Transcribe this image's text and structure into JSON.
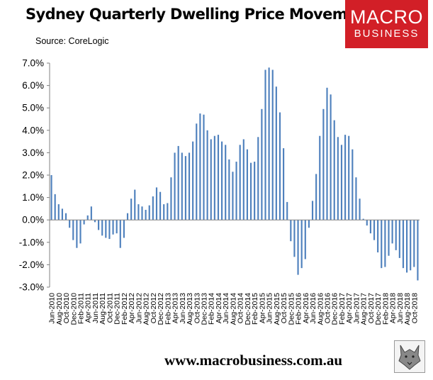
{
  "header": {
    "title": "Sydney Quarterly Dwelling Price Movements",
    "source": "Source: CoreLogic"
  },
  "logo": {
    "line1": "MACRO",
    "line2": "BUSINESS",
    "color": "#d21f27"
  },
  "footer": {
    "url": "www.macrobusiness.com.au",
    "icon": "wolf-logo-icon"
  },
  "chart_data": {
    "type": "bar",
    "title": "Sydney Quarterly Dwelling Price Movements",
    "xlabel": "",
    "ylabel": "",
    "ylim": [
      -3.0,
      7.0
    ],
    "yticks": [
      "7.0%",
      "6.0%",
      "5.0%",
      "4.0%",
      "3.0%",
      "2.0%",
      "1.0%",
      "0.0%",
      "-1.0%",
      "-2.0%",
      "-3.0%"
    ],
    "grid": false,
    "legend": "none",
    "bar_color": "#4f81bd",
    "categories": [
      "Jun-2010",
      "Jul-2010",
      "Aug-2010",
      "Sep-2010",
      "Oct-2010",
      "Nov-2010",
      "Dec-2010",
      "Jan-2011",
      "Feb-2011",
      "Mar-2011",
      "Apr-2011",
      "May-2011",
      "Jun-2011",
      "Jul-2011",
      "Aug-2011",
      "Sep-2011",
      "Oct-2011",
      "Nov-2011",
      "Dec-2011",
      "Jan-2012",
      "Feb-2012",
      "Mar-2012",
      "Apr-2012",
      "May-2012",
      "Jun-2012",
      "Jul-2012",
      "Aug-2012",
      "Sep-2012",
      "Oct-2012",
      "Nov-2012",
      "Dec-2012",
      "Jan-2013",
      "Feb-2013",
      "Mar-2013",
      "Apr-2013",
      "May-2013",
      "Jun-2013",
      "Jul-2013",
      "Aug-2013",
      "Sep-2013",
      "Oct-2013",
      "Nov-2013",
      "Dec-2013",
      "Jan-2014",
      "Feb-2014",
      "Mar-2014",
      "Apr-2014",
      "May-2014",
      "Jun-2014",
      "Jul-2014",
      "Aug-2014",
      "Sep-2014",
      "Oct-2014",
      "Nov-2014",
      "Dec-2014",
      "Jan-2015",
      "Feb-2015",
      "Mar-2015",
      "Apr-2015",
      "May-2015",
      "Jun-2015",
      "Jul-2015",
      "Aug-2015",
      "Sep-2015",
      "Oct-2015",
      "Nov-2015",
      "Dec-2015",
      "Jan-2016",
      "Feb-2016",
      "Mar-2016",
      "Apr-2016",
      "May-2016",
      "Jun-2016",
      "Jul-2016",
      "Aug-2016",
      "Sep-2016",
      "Oct-2016",
      "Nov-2016",
      "Dec-2016",
      "Jan-2017",
      "Feb-2017",
      "Mar-2017",
      "Apr-2017",
      "May-2017",
      "Jun-2017",
      "Jul-2017",
      "Aug-2017",
      "Sep-2017",
      "Oct-2017",
      "Nov-2017",
      "Dec-2017",
      "Jan-2018",
      "Feb-2018",
      "Mar-2018",
      "Apr-2018",
      "May-2018",
      "Jun-2018",
      "Jul-2018",
      "Aug-2018",
      "Sep-2018",
      "Oct-2018",
      "Nov-2018"
    ],
    "tick_labels": [
      "Jun-2010",
      "Aug-2010",
      "Oct-2010",
      "Dec-2010",
      "Feb-2011",
      "Apr-2011",
      "Jun-2011",
      "Aug-2011",
      "Oct-2011",
      "Dec-2011",
      "Feb-2012",
      "Apr-2012",
      "Jun-2012",
      "Aug-2012",
      "Oct-2012",
      "Dec-2012",
      "Feb-2013",
      "Apr-2013",
      "Jun-2013",
      "Aug-2013",
      "Oct-2013",
      "Dec-2013",
      "Feb-2014",
      "Apr-2014",
      "Jun-2014",
      "Aug-2014",
      "Oct-2014",
      "Dec-2014",
      "Feb-2015",
      "Apr-2015",
      "Jun-2015",
      "Aug-2015",
      "Oct-2015",
      "Dec-2015",
      "Feb-2016",
      "Apr-2016",
      "Jun-2016",
      "Aug-2016",
      "Oct-2016",
      "Dec-2016",
      "Feb-2017",
      "Apr-2017",
      "Jun-2017",
      "Aug-2017",
      "Oct-2017",
      "Dec-2017",
      "Feb-2018",
      "Apr-2018",
      "Jun-2018",
      "Aug-2018",
      "Oct-2018"
    ],
    "values": [
      2.0,
      1.15,
      0.7,
      0.5,
      0.3,
      -0.35,
      -0.9,
      -1.25,
      -1.05,
      -0.2,
      0.2,
      0.6,
      -0.1,
      -0.45,
      -0.7,
      -0.8,
      -0.85,
      -0.65,
      -0.6,
      -1.25,
      -0.8,
      0.3,
      0.95,
      1.35,
      0.7,
      0.6,
      0.45,
      0.65,
      1.05,
      1.45,
      1.25,
      0.7,
      0.75,
      1.9,
      3.0,
      3.3,
      3.0,
      2.85,
      3.0,
      3.5,
      4.3,
      4.75,
      4.7,
      4.0,
      3.6,
      3.75,
      3.8,
      3.5,
      3.35,
      2.7,
      2.15,
      2.6,
      3.35,
      3.6,
      3.15,
      2.55,
      2.6,
      3.7,
      4.95,
      6.7,
      6.8,
      6.7,
      5.95,
      4.8,
      3.2,
      0.8,
      -0.95,
      -1.65,
      -2.45,
      -2.15,
      -1.75,
      -0.35,
      0.85,
      2.05,
      3.75,
      4.95,
      5.9,
      5.6,
      4.45,
      3.7,
      3.35,
      3.8,
      3.75,
      3.15,
      1.9,
      0.95,
      0.05,
      -0.25,
      -0.6,
      -0.9,
      -1.45,
      -2.15,
      -2.1,
      -1.6,
      -1.05,
      -1.35,
      -1.7,
      -2.15,
      -2.35,
      -2.25,
      -2.1,
      -2.7
    ]
  }
}
